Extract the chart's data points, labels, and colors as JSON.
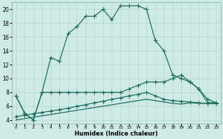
{
  "xlabel": "Humidex (Indice chaleur)",
  "bg_color": "#ceeae4",
  "line_color": "#1a6b5e",
  "grid_color": "#b8d8d2",
  "xlim": [
    -0.5,
    23.5
  ],
  "ylim": [
    3.5,
    21.0
  ],
  "xticks": [
    0,
    1,
    2,
    3,
    4,
    5,
    6,
    7,
    8,
    9,
    10,
    11,
    12,
    13,
    14,
    15,
    16,
    17,
    18,
    19,
    20,
    21,
    22,
    23
  ],
  "yticks": [
    4,
    6,
    8,
    10,
    12,
    14,
    16,
    18,
    20
  ],
  "line1_x": [
    0,
    1,
    2,
    3,
    4,
    5,
    6,
    7,
    8,
    9,
    10,
    11,
    12,
    13,
    14,
    15,
    16,
    17,
    18,
    19,
    20,
    21,
    22,
    23
  ],
  "line1_y": [
    7.5,
    5.0,
    4.0,
    8.0,
    13.0,
    12.5,
    16.5,
    17.5,
    19.0,
    19.0,
    20.0,
    18.5,
    20.5,
    20.5,
    20.5,
    20.0,
    15.5,
    14.0,
    10.5,
    10.0,
    9.5,
    8.5,
    6.5,
    6.5
  ],
  "line2_x": [
    0,
    1,
    2,
    3,
    4,
    5,
    6,
    7,
    8,
    9,
    10,
    11,
    12,
    13,
    14,
    15,
    16,
    17,
    18,
    19,
    20,
    21,
    22,
    23
  ],
  "line2_y": [
    7.5,
    5.0,
    4.0,
    8.0,
    8.0,
    8.0,
    8.0,
    8.0,
    8.0,
    8.0,
    8.0,
    8.0,
    8.0,
    8.5,
    9.0,
    9.5,
    9.5,
    9.5,
    10.0,
    10.5,
    9.5,
    8.5,
    7.0,
    6.5
  ],
  "line3_x": [
    0,
    1,
    2,
    3,
    4,
    5,
    6,
    7,
    8,
    9,
    10,
    11,
    12,
    13,
    14,
    15,
    16,
    17,
    18,
    19,
    20,
    21,
    22,
    23
  ],
  "line3_y": [
    4.5,
    4.7,
    4.9,
    5.1,
    5.3,
    5.5,
    5.7,
    6.0,
    6.2,
    6.5,
    6.7,
    7.0,
    7.2,
    7.5,
    7.7,
    8.0,
    7.5,
    7.0,
    6.8,
    6.7,
    6.6,
    6.5,
    6.4,
    6.4
  ],
  "line4_x": [
    0,
    1,
    2,
    3,
    4,
    5,
    6,
    7,
    8,
    9,
    10,
    11,
    12,
    13,
    14,
    15,
    16,
    17,
    18,
    19,
    20,
    21,
    22,
    23
  ],
  "line4_y": [
    4.0,
    4.2,
    4.4,
    4.6,
    4.8,
    5.0,
    5.2,
    5.4,
    5.6,
    5.8,
    6.0,
    6.2,
    6.4,
    6.6,
    6.8,
    7.0,
    6.8,
    6.6,
    6.4,
    6.3,
    6.5,
    6.4,
    6.4,
    6.4
  ]
}
